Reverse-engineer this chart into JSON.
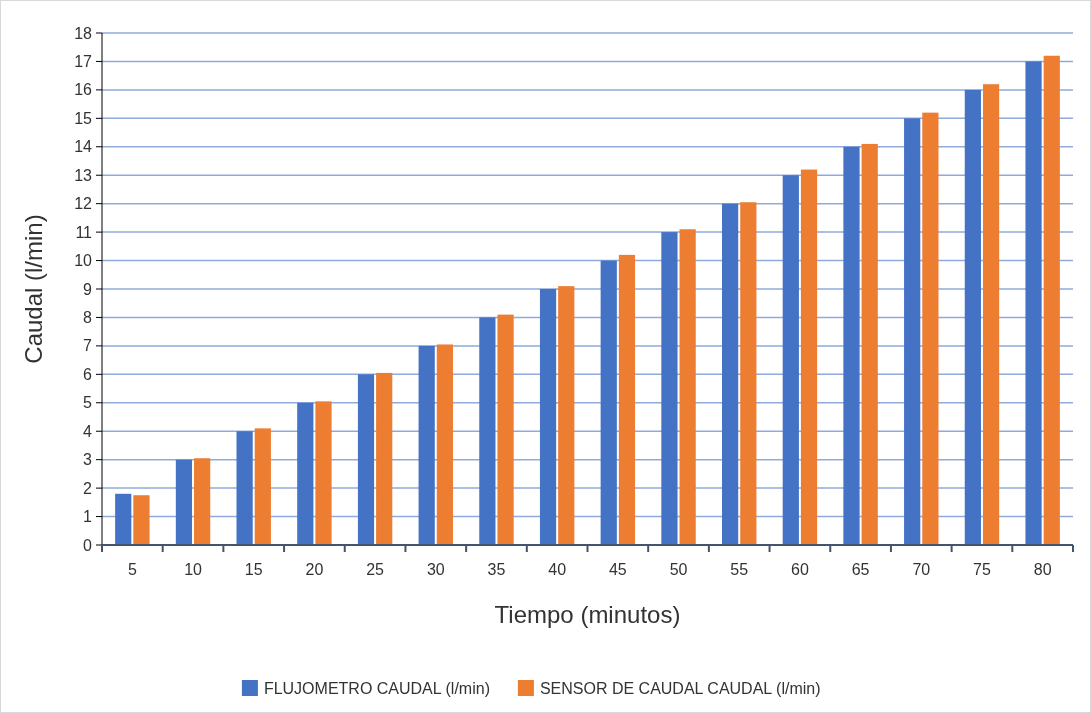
{
  "chart_data": {
    "type": "bar",
    "xlabel": "Tiempo (minutos)",
    "ylabel": "Caudal (l/min)",
    "categories": [
      "5",
      "10",
      "15",
      "20",
      "25",
      "30",
      "35",
      "40",
      "45",
      "50",
      "55",
      "60",
      "65",
      "70",
      "75",
      "80"
    ],
    "series": [
      {
        "name": "FLUJOMETRO CAUDAL (l/min)",
        "color": "#4472c4",
        "values": [
          1.8,
          3,
          4,
          5,
          6,
          7,
          8,
          9,
          10,
          11,
          12,
          13,
          14,
          15,
          16,
          17
        ]
      },
      {
        "name": "SENSOR DE CAUDAL CAUDAL (l/min)",
        "color": "#ed7d31",
        "values": [
          1.75,
          3.05,
          4.1,
          5.05,
          6.05,
          7.05,
          8.1,
          9.1,
          10.2,
          11.1,
          12.05,
          13.2,
          14.1,
          15.2,
          16.2,
          17.2
        ]
      }
    ],
    "ylim": [
      0,
      18
    ],
    "yticks": [
      0,
      1,
      2,
      3,
      4,
      5,
      6,
      7,
      8,
      9,
      10,
      11,
      12,
      13,
      14,
      15,
      16,
      17,
      18
    ],
    "grid": "y",
    "legend": "bottom"
  }
}
